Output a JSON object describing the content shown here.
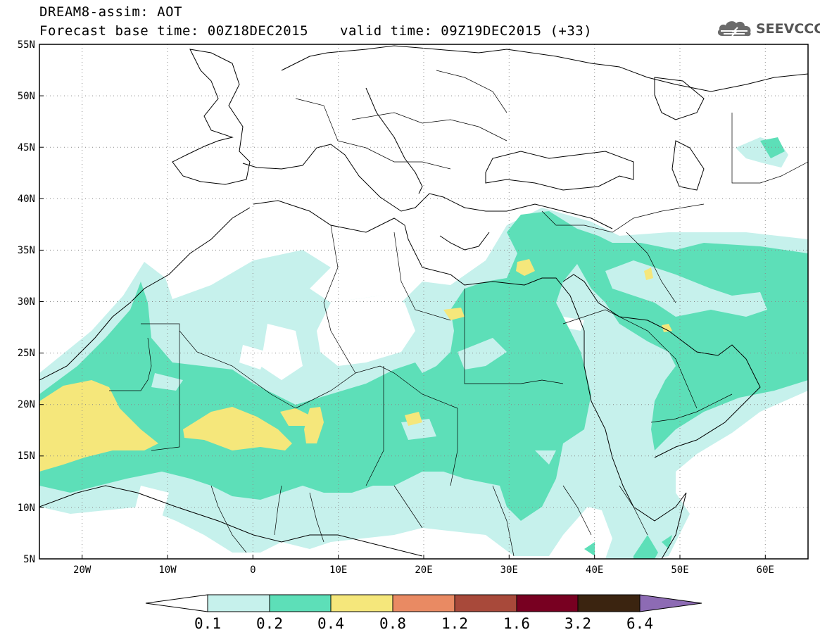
{
  "header": {
    "title_line1": "DREAM8-assim: AOT",
    "title_line2": "Forecast base time: 00Z18DEC2015",
    "valid_time": "valid time: 09Z19DEC2015 (+33)",
    "logo_text": "SEEVCCC"
  },
  "map": {
    "lat_labels": [
      "55N",
      "50N",
      "45N",
      "40N",
      "35N",
      "30N",
      "25N",
      "20N",
      "15N",
      "10N",
      "5N"
    ],
    "lon_labels": [
      "20W",
      "10W",
      "0",
      "10E",
      "20E",
      "30E",
      "40E",
      "50E",
      "60E"
    ],
    "lon_range": [
      -25,
      65
    ],
    "lat_range": [
      5,
      55
    ],
    "gridlines": "dotted"
  },
  "colorbar": {
    "labels": [
      "0.1",
      "0.2",
      "0.4",
      "0.8",
      "1.2",
      "1.6",
      "3.2",
      "6.4"
    ],
    "colors": [
      "#c6f1ec",
      "#5ddfb8",
      "#f5e77b",
      "#e98a63",
      "#a8493a",
      "#780021",
      "#3b2410",
      "#8d6bb4"
    ]
  }
}
